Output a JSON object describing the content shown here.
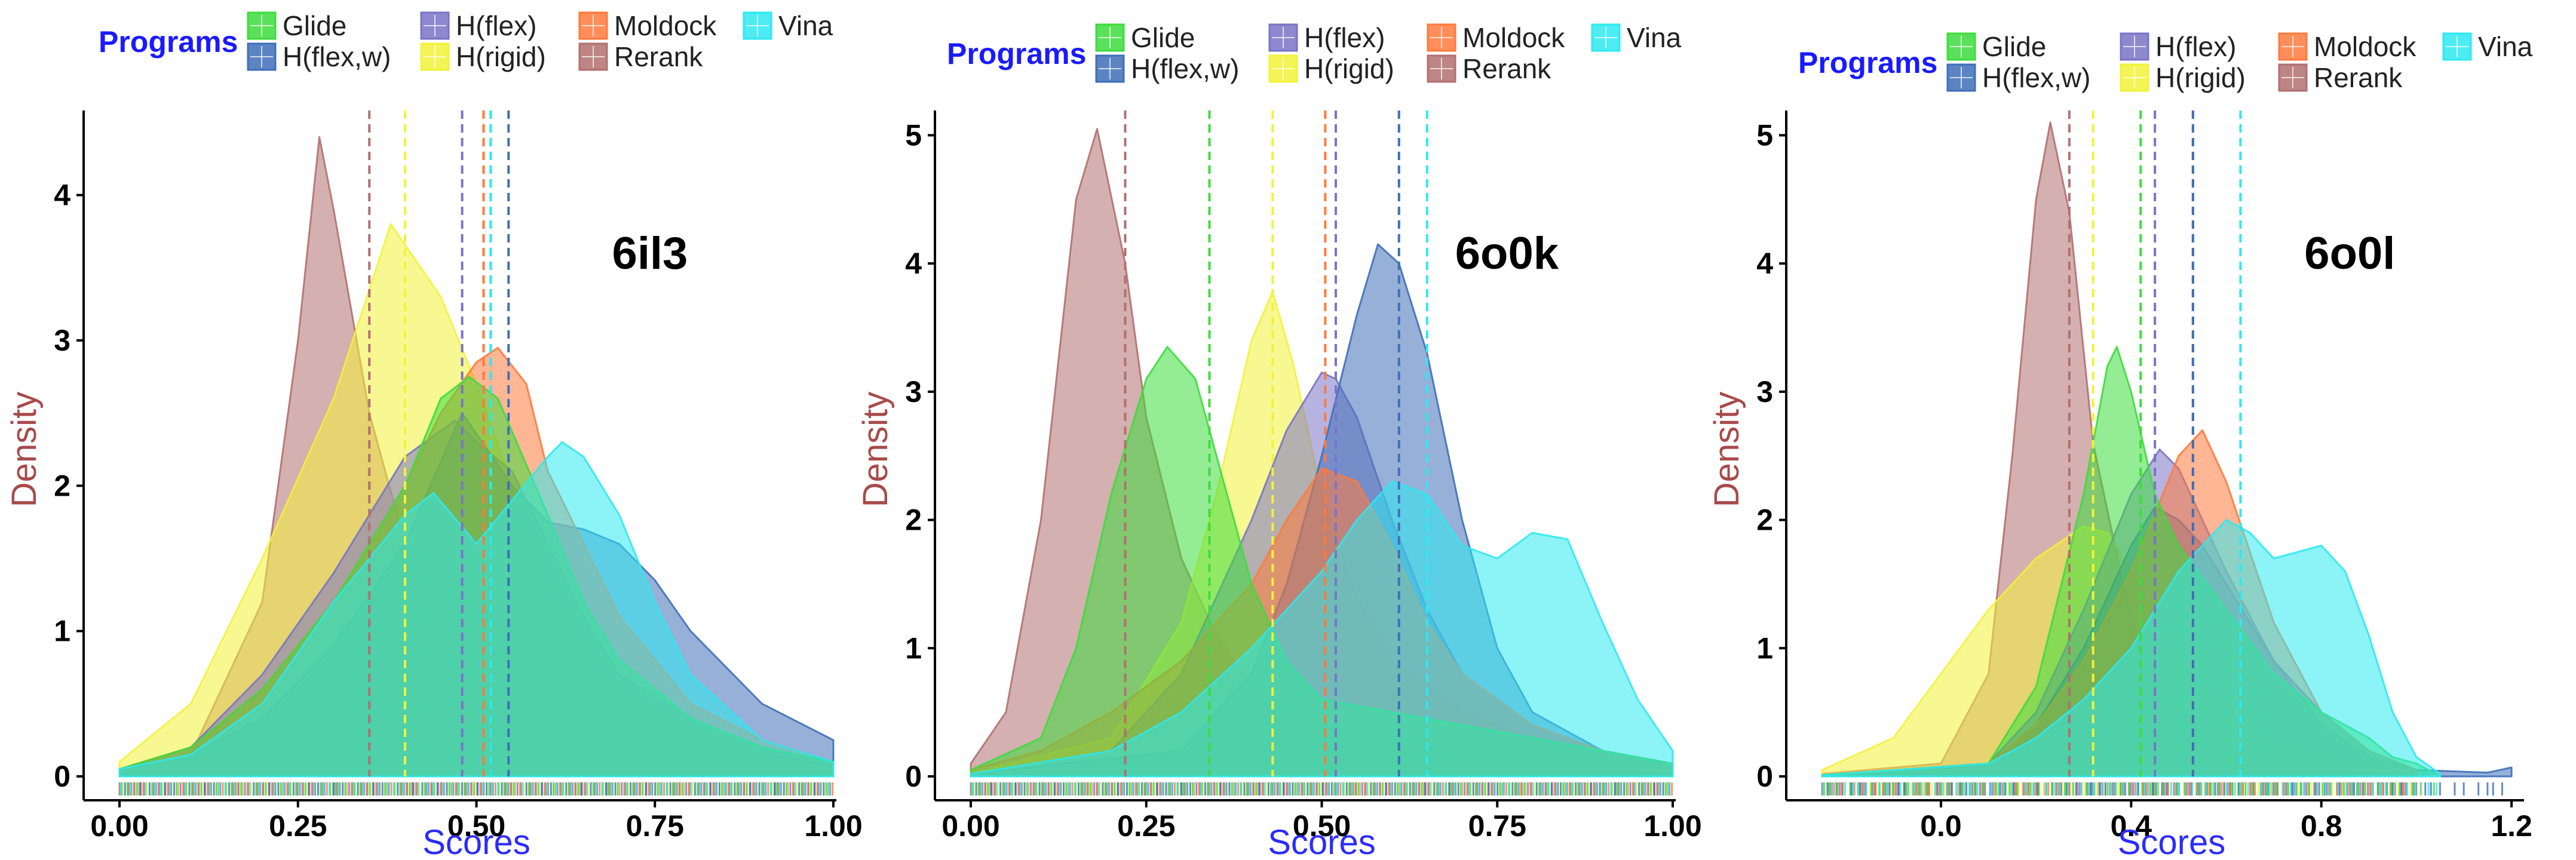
{
  "chart_data": [
    {
      "type": "area",
      "panel_label": "6il3",
      "xlabel": "Scores",
      "ylabel": "Density",
      "xlim": [
        0,
        1
      ],
      "ylim": [
        0,
        4.5
      ],
      "x_ticks": [
        "0.00",
        "0.25",
        "0.50",
        "0.75",
        "1.00"
      ],
      "x_tick_values": [
        0,
        0.25,
        0.5,
        0.75,
        1.0
      ],
      "y_ticks": [
        0,
        1,
        2,
        3,
        4
      ],
      "legend": {
        "title": "Programs",
        "entries": [
          "Glide",
          "H(flex)",
          "Moldock",
          "Vina",
          "H(flex,w)",
          "H(rigid)",
          "Rerank"
        ]
      },
      "means": {
        "Rerank": 0.35,
        "H(rigid)": 0.4,
        "H(flex)": 0.48,
        "Moldock": 0.51,
        "Glide": 0.52,
        "H(flex,w)": 0.545,
        "Vina": 0.52
      },
      "series": [
        {
          "name": "Rerank",
          "x": [
            0,
            0.1,
            0.2,
            0.25,
            0.28,
            0.3,
            0.35,
            0.4,
            0.45,
            0.5,
            0.55,
            0.6,
            0.65,
            0.7,
            0.8,
            0.9,
            1.0
          ],
          "y": [
            0.02,
            0.15,
            1.2,
            3.0,
            4.4,
            3.9,
            2.5,
            1.6,
            1.4,
            1.3,
            1.0,
            0.7,
            0.5,
            0.4,
            0.25,
            0.15,
            0.08
          ]
        },
        {
          "name": "H(rigid)",
          "x": [
            0,
            0.1,
            0.2,
            0.3,
            0.38,
            0.45,
            0.5,
            0.55,
            0.6,
            0.65,
            0.7,
            0.8,
            0.9,
            1.0
          ],
          "y": [
            0.1,
            0.5,
            1.5,
            2.6,
            3.8,
            3.3,
            2.7,
            2.0,
            1.3,
            0.9,
            0.6,
            0.35,
            0.15,
            0.05
          ]
        },
        {
          "name": "H(flex)",
          "x": [
            0,
            0.1,
            0.2,
            0.3,
            0.4,
            0.47,
            0.5,
            0.55,
            0.6,
            0.65,
            0.7,
            0.8,
            0.9,
            1.0
          ],
          "y": [
            0.05,
            0.2,
            0.7,
            1.4,
            2.2,
            2.45,
            2.3,
            2.1,
            1.6,
            1.1,
            0.7,
            0.4,
            0.2,
            0.1
          ]
        },
        {
          "name": "H(flex,w)",
          "x": [
            0,
            0.1,
            0.2,
            0.3,
            0.4,
            0.48,
            0.55,
            0.6,
            0.65,
            0.7,
            0.75,
            0.8,
            0.9,
            1.0
          ],
          "y": [
            0.05,
            0.15,
            0.4,
            0.9,
            1.6,
            2.5,
            2.0,
            1.75,
            1.7,
            1.6,
            1.35,
            1.0,
            0.5,
            0.25
          ]
        },
        {
          "name": "Moldock",
          "x": [
            0,
            0.1,
            0.2,
            0.3,
            0.4,
            0.45,
            0.5,
            0.53,
            0.57,
            0.6,
            0.7,
            0.8,
            0.9,
            1.0
          ],
          "y": [
            0.05,
            0.2,
            0.6,
            1.2,
            2.0,
            2.5,
            2.85,
            2.95,
            2.7,
            2.1,
            1.1,
            0.5,
            0.25,
            0.1
          ]
        },
        {
          "name": "Glide",
          "x": [
            0,
            0.1,
            0.2,
            0.3,
            0.4,
            0.45,
            0.49,
            0.53,
            0.6,
            0.65,
            0.7,
            0.8,
            0.9,
            1.0
          ],
          "y": [
            0.05,
            0.2,
            0.6,
            1.2,
            2.0,
            2.6,
            2.75,
            2.6,
            1.8,
            1.2,
            0.8,
            0.4,
            0.2,
            0.1
          ]
        },
        {
          "name": "Vina",
          "x": [
            0,
            0.1,
            0.2,
            0.3,
            0.4,
            0.44,
            0.5,
            0.55,
            0.6,
            0.62,
            0.65,
            0.7,
            0.75,
            0.8,
            0.9,
            1.0
          ],
          "y": [
            0.05,
            0.15,
            0.5,
            1.2,
            1.8,
            1.95,
            1.6,
            1.9,
            2.2,
            2.3,
            2.2,
            1.8,
            1.2,
            0.7,
            0.25,
            0.1
          ]
        }
      ]
    },
    {
      "type": "area",
      "panel_label": "6o0k",
      "xlabel": "Scores",
      "ylabel": "Density",
      "xlim": [
        0,
        1
      ],
      "ylim": [
        0,
        5.1
      ],
      "x_ticks": [
        "0.00",
        "0.25",
        "0.50",
        "0.75",
        "1.00"
      ],
      "x_tick_values": [
        0,
        0.25,
        0.5,
        0.75,
        1.0
      ],
      "y_ticks": [
        0,
        1,
        2,
        3,
        4,
        5
      ],
      "legend": {
        "title": "Programs",
        "entries": [
          "Glide",
          "H(flex)",
          "Moldock",
          "Vina",
          "H(flex,w)",
          "H(rigid)",
          "Rerank"
        ]
      },
      "means": {
        "Rerank": 0.22,
        "Glide": 0.34,
        "H(rigid)": 0.43,
        "Moldock": 0.505,
        "H(flex)": 0.52,
        "H(flex,w)": 0.61,
        "Vina": 0.65
      },
      "series": [
        {
          "name": "Rerank",
          "x": [
            0,
            0.05,
            0.1,
            0.15,
            0.18,
            0.22,
            0.25,
            0.3,
            0.35,
            0.4,
            0.5,
            0.6,
            0.7,
            0.8,
            0.9,
            1.0
          ],
          "y": [
            0.1,
            0.5,
            2.0,
            4.5,
            5.05,
            4.0,
            2.8,
            1.7,
            1.1,
            0.7,
            0.4,
            0.3,
            0.2,
            0.1,
            0.05,
            0.02
          ]
        },
        {
          "name": "Glide",
          "x": [
            0,
            0.1,
            0.15,
            0.2,
            0.25,
            0.28,
            0.32,
            0.35,
            0.4,
            0.45,
            0.5,
            0.6,
            0.7,
            0.8,
            0.9,
            1.0
          ],
          "y": [
            0.05,
            0.3,
            1.0,
            2.2,
            3.1,
            3.35,
            3.1,
            2.5,
            1.5,
            0.9,
            0.6,
            0.5,
            0.4,
            0.3,
            0.2,
            0.1
          ]
        },
        {
          "name": "H(rigid)",
          "x": [
            0,
            0.2,
            0.3,
            0.35,
            0.4,
            0.43,
            0.46,
            0.5,
            0.55,
            0.6,
            0.7,
            0.8,
            0.9,
            1.0
          ],
          "y": [
            0.02,
            0.3,
            1.2,
            2.2,
            3.4,
            3.78,
            3.2,
            2.2,
            1.4,
            0.9,
            0.5,
            0.3,
            0.15,
            0.05
          ]
        },
        {
          "name": "H(flex)",
          "x": [
            0,
            0.2,
            0.3,
            0.4,
            0.45,
            0.5,
            0.52,
            0.55,
            0.6,
            0.65,
            0.7,
            0.8,
            0.9,
            1.0
          ],
          "y": [
            0.02,
            0.2,
            0.8,
            2.0,
            2.7,
            3.15,
            3.1,
            2.8,
            2.0,
            1.3,
            0.8,
            0.4,
            0.2,
            0.1
          ]
        },
        {
          "name": "Moldock",
          "x": [
            0,
            0.1,
            0.2,
            0.3,
            0.4,
            0.45,
            0.5,
            0.55,
            0.6,
            0.65,
            0.7,
            0.8,
            0.9,
            1.0
          ],
          "y": [
            0.05,
            0.2,
            0.5,
            0.9,
            1.5,
            2.0,
            2.4,
            2.3,
            1.8,
            1.2,
            0.8,
            0.4,
            0.2,
            0.1
          ]
        },
        {
          "name": "H(flex,w)",
          "x": [
            0,
            0.3,
            0.4,
            0.45,
            0.5,
            0.55,
            0.58,
            0.61,
            0.65,
            0.7,
            0.75,
            0.8,
            0.9,
            1.0
          ],
          "y": [
            0.02,
            0.2,
            0.8,
            1.5,
            2.5,
            3.6,
            4.15,
            4.0,
            3.3,
            2.0,
            1.0,
            0.5,
            0.2,
            0.1
          ]
        },
        {
          "name": "Vina",
          "x": [
            0,
            0.2,
            0.3,
            0.4,
            0.5,
            0.55,
            0.6,
            0.65,
            0.7,
            0.75,
            0.8,
            0.85,
            0.9,
            0.95,
            1.0
          ],
          "y": [
            0.02,
            0.2,
            0.5,
            1.0,
            1.6,
            2.0,
            2.3,
            2.2,
            1.8,
            1.7,
            1.9,
            1.85,
            1.2,
            0.6,
            0.2
          ]
        }
      ]
    },
    {
      "type": "area",
      "panel_label": "6o0l",
      "xlabel": "Scores",
      "ylabel": "Density",
      "xlim": [
        -0.25,
        1.22
      ],
      "ylim": [
        0,
        5.1
      ],
      "x_ticks": [
        "0.0",
        "0.4",
        "0.8",
        "1.2"
      ],
      "x_tick_values": [
        0.0,
        0.4,
        0.8,
        1.2
      ],
      "y_ticks": [
        0,
        1,
        2,
        3,
        4,
        5
      ],
      "legend": {
        "title": "Programs",
        "entries": [
          "Glide",
          "H(flex)",
          "Moldock",
          "Vina",
          "H(flex,w)",
          "H(rigid)",
          "Rerank"
        ]
      },
      "means": {
        "Rerank": 0.27,
        "H(rigid)": 0.32,
        "Glide": 0.42,
        "H(flex)": 0.45,
        "Moldock": 0.53,
        "H(flex,w)": 0.53,
        "Vina": 0.63
      },
      "series": [
        {
          "name": "H(rigid)",
          "x": [
            -0.25,
            -0.1,
            0.0,
            0.1,
            0.2,
            0.3,
            0.35,
            0.4,
            0.5,
            0.6,
            0.7,
            0.8,
            1.0
          ],
          "y": [
            0.05,
            0.3,
            0.8,
            1.3,
            1.7,
            1.95,
            1.9,
            1.6,
            0.9,
            0.5,
            0.3,
            0.15,
            0.02
          ]
        },
        {
          "name": "Rerank",
          "x": [
            -0.25,
            0.0,
            0.1,
            0.15,
            0.2,
            0.23,
            0.27,
            0.32,
            0.4,
            0.5,
            0.6,
            0.7,
            0.8,
            1.0
          ],
          "y": [
            0.02,
            0.1,
            0.8,
            2.5,
            4.5,
            5.1,
            4.4,
            2.6,
            1.2,
            0.5,
            0.25,
            0.1,
            0.05,
            0.01
          ]
        },
        {
          "name": "Glide",
          "x": [
            -0.25,
            0.1,
            0.2,
            0.3,
            0.35,
            0.37,
            0.4,
            0.45,
            0.5,
            0.6,
            0.7,
            0.8,
            0.9,
            0.95,
            1.0,
            1.05
          ],
          "y": [
            0.01,
            0.1,
            0.7,
            2.2,
            3.2,
            3.35,
            3.0,
            2.2,
            1.8,
            1.3,
            0.8,
            0.5,
            0.3,
            0.15,
            0.1,
            0.0
          ]
        },
        {
          "name": "H(flex)",
          "x": [
            -0.25,
            0.1,
            0.2,
            0.3,
            0.4,
            0.46,
            0.5,
            0.6,
            0.7,
            0.8,
            0.9,
            1.0
          ],
          "y": [
            0.01,
            0.1,
            0.5,
            1.3,
            2.2,
            2.55,
            2.4,
            1.6,
            0.9,
            0.4,
            0.15,
            0.05
          ]
        },
        {
          "name": "H(flex,w)",
          "x": [
            -0.25,
            0.1,
            0.2,
            0.3,
            0.4,
            0.45,
            0.5,
            0.55,
            0.6,
            0.7,
            0.8,
            0.9,
            1.0,
            1.15,
            1.2
          ],
          "y": [
            0.01,
            0.1,
            0.4,
            1.0,
            1.8,
            2.1,
            2.0,
            1.8,
            1.5,
            0.9,
            0.5,
            0.2,
            0.05,
            0.03,
            0.07
          ]
        },
        {
          "name": "Moldock",
          "x": [
            -0.25,
            0.1,
            0.2,
            0.3,
            0.4,
            0.5,
            0.55,
            0.6,
            0.7,
            0.8,
            0.9,
            1.0
          ],
          "y": [
            0.01,
            0.1,
            0.4,
            0.9,
            1.6,
            2.5,
            2.7,
            2.3,
            1.2,
            0.5,
            0.2,
            0.05
          ]
        },
        {
          "name": "Vina",
          "x": [
            -0.25,
            0.1,
            0.2,
            0.3,
            0.4,
            0.5,
            0.6,
            0.65,
            0.7,
            0.75,
            0.8,
            0.85,
            0.9,
            0.95,
            1.0,
            1.05
          ],
          "y": [
            0.01,
            0.1,
            0.3,
            0.6,
            1.0,
            1.6,
            2.0,
            1.9,
            1.7,
            1.75,
            1.8,
            1.6,
            1.1,
            0.5,
            0.15,
            0.02
          ]
        }
      ]
    }
  ],
  "colors": {
    "Glide": "#3ddc3d",
    "H(flex)": "#7a74c6",
    "Moldock": "#ff7a3d",
    "Vina": "#2ee9f0",
    "H(flex,w)": "#3f6fb8",
    "H(rigid)": "#f2f23a",
    "Rerank": "#b27070"
  }
}
